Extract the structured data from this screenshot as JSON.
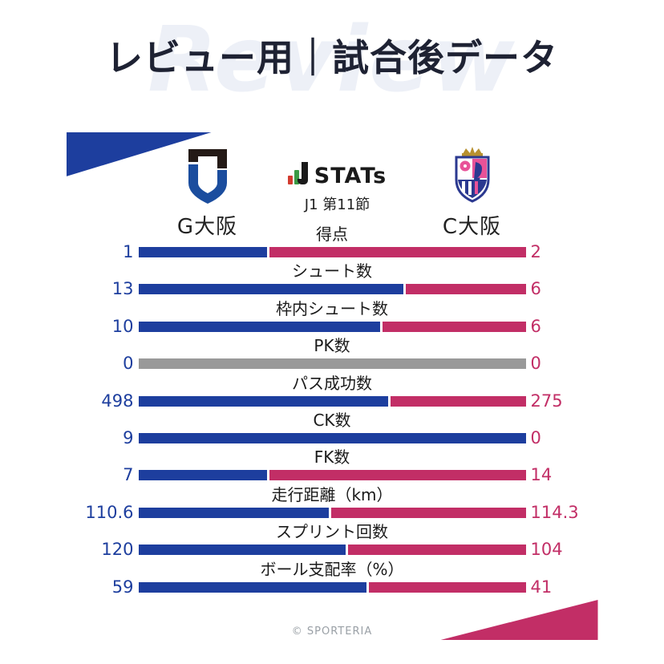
{
  "page": {
    "title": "レビュー用｜試合後データ",
    "watermark": "Review",
    "footer_credit": "© SPORTERIA"
  },
  "header": {
    "left_team": {
      "name": "G大阪"
    },
    "right_team": {
      "name": "C大阪"
    },
    "center": {
      "stats_logo_text": "STATs",
      "round_label": "J1 第11節"
    }
  },
  "colors": {
    "title_text": "#1e2233",
    "watermark_text": "#edf0f7",
    "left_bar": "#1d3e9e",
    "right_bar": "#c22e66",
    "neutral_bar": "#999999",
    "value_left_text": "#1d3e9e",
    "value_right_text": "#c22e66",
    "triangle_blue": "#1d3e9e",
    "triangle_pink": "#c22e66",
    "stats_logo_red": "#d23b2f",
    "stats_logo_green": "#3a9a44",
    "stats_logo_dark": "#1a1a1a"
  },
  "chart_data": {
    "type": "bar",
    "subtype": "head-to-head shared bars (left/right share of total, gray when both zero)",
    "title": "レビュー用｜試合後データ",
    "round": "J1 第11節",
    "teams": [
      "G大阪",
      "C大阪"
    ],
    "categories": [
      "得点",
      "シュート数",
      "枠内シュート数",
      "PK数",
      "パス成功数",
      "CK数",
      "FK数",
      "走行距離（km）",
      "スプリント回数",
      "ボール支配率（%）"
    ],
    "series": [
      {
        "name": "G大阪",
        "color": "#1d3e9e",
        "values": [
          1,
          13,
          10,
          0,
          498,
          9,
          7,
          110.6,
          120,
          59
        ]
      },
      {
        "name": "C大阪",
        "color": "#c22e66",
        "values": [
          2,
          6,
          6,
          0,
          275,
          0,
          14,
          114.3,
          104,
          41
        ]
      }
    ],
    "legend_position": "values at both ends of each bar",
    "grid": false
  }
}
